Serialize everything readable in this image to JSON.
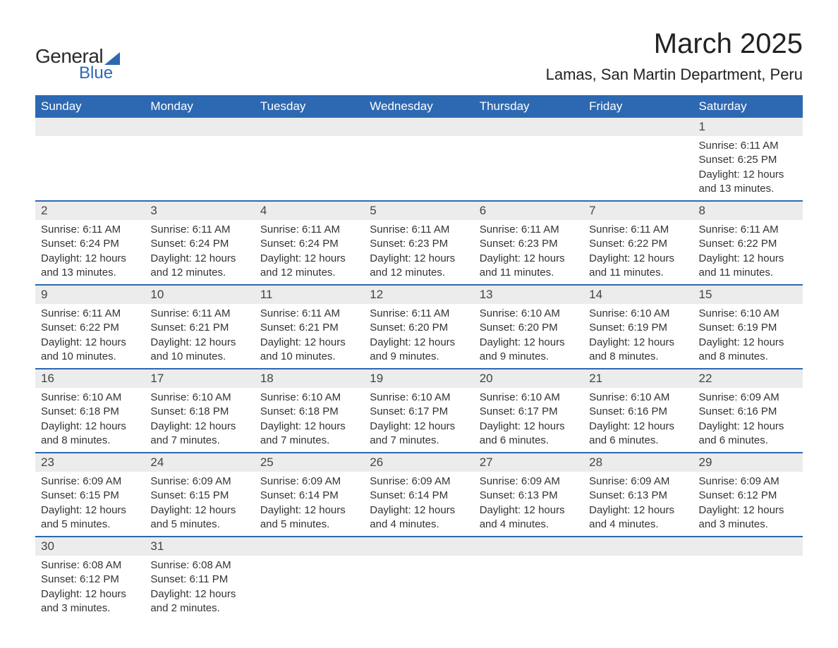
{
  "brand": {
    "line1": "General",
    "line2": "Blue"
  },
  "title": "March 2025",
  "location": "Lamas, San Martin Department, Peru",
  "colors": {
    "header_bg": "#2d68b2",
    "header_text": "#ffffff",
    "daynum_bg": "#ececec",
    "row_divider": "#2d68b2",
    "body_text": "#333333",
    "page_bg": "#ffffff"
  },
  "typography": {
    "title_fontsize": 40,
    "location_fontsize": 22,
    "header_fontsize": 17,
    "daynum_fontsize": 17,
    "body_fontsize": 15,
    "font_family": "Arial"
  },
  "weekday_headers": [
    "Sunday",
    "Monday",
    "Tuesday",
    "Wednesday",
    "Thursday",
    "Friday",
    "Saturday"
  ],
  "weeks": [
    [
      null,
      null,
      null,
      null,
      null,
      null,
      {
        "n": "1",
        "sunrise": "Sunrise: 6:11 AM",
        "sunset": "Sunset: 6:25 PM",
        "daylight": "Daylight: 12 hours and 13 minutes."
      }
    ],
    [
      {
        "n": "2",
        "sunrise": "Sunrise: 6:11 AM",
        "sunset": "Sunset: 6:24 PM",
        "daylight": "Daylight: 12 hours and 13 minutes."
      },
      {
        "n": "3",
        "sunrise": "Sunrise: 6:11 AM",
        "sunset": "Sunset: 6:24 PM",
        "daylight": "Daylight: 12 hours and 12 minutes."
      },
      {
        "n": "4",
        "sunrise": "Sunrise: 6:11 AM",
        "sunset": "Sunset: 6:24 PM",
        "daylight": "Daylight: 12 hours and 12 minutes."
      },
      {
        "n": "5",
        "sunrise": "Sunrise: 6:11 AM",
        "sunset": "Sunset: 6:23 PM",
        "daylight": "Daylight: 12 hours and 12 minutes."
      },
      {
        "n": "6",
        "sunrise": "Sunrise: 6:11 AM",
        "sunset": "Sunset: 6:23 PM",
        "daylight": "Daylight: 12 hours and 11 minutes."
      },
      {
        "n": "7",
        "sunrise": "Sunrise: 6:11 AM",
        "sunset": "Sunset: 6:22 PM",
        "daylight": "Daylight: 12 hours and 11 minutes."
      },
      {
        "n": "8",
        "sunrise": "Sunrise: 6:11 AM",
        "sunset": "Sunset: 6:22 PM",
        "daylight": "Daylight: 12 hours and 11 minutes."
      }
    ],
    [
      {
        "n": "9",
        "sunrise": "Sunrise: 6:11 AM",
        "sunset": "Sunset: 6:22 PM",
        "daylight": "Daylight: 12 hours and 10 minutes."
      },
      {
        "n": "10",
        "sunrise": "Sunrise: 6:11 AM",
        "sunset": "Sunset: 6:21 PM",
        "daylight": "Daylight: 12 hours and 10 minutes."
      },
      {
        "n": "11",
        "sunrise": "Sunrise: 6:11 AM",
        "sunset": "Sunset: 6:21 PM",
        "daylight": "Daylight: 12 hours and 10 minutes."
      },
      {
        "n": "12",
        "sunrise": "Sunrise: 6:11 AM",
        "sunset": "Sunset: 6:20 PM",
        "daylight": "Daylight: 12 hours and 9 minutes."
      },
      {
        "n": "13",
        "sunrise": "Sunrise: 6:10 AM",
        "sunset": "Sunset: 6:20 PM",
        "daylight": "Daylight: 12 hours and 9 minutes."
      },
      {
        "n": "14",
        "sunrise": "Sunrise: 6:10 AM",
        "sunset": "Sunset: 6:19 PM",
        "daylight": "Daylight: 12 hours and 8 minutes."
      },
      {
        "n": "15",
        "sunrise": "Sunrise: 6:10 AM",
        "sunset": "Sunset: 6:19 PM",
        "daylight": "Daylight: 12 hours and 8 minutes."
      }
    ],
    [
      {
        "n": "16",
        "sunrise": "Sunrise: 6:10 AM",
        "sunset": "Sunset: 6:18 PM",
        "daylight": "Daylight: 12 hours and 8 minutes."
      },
      {
        "n": "17",
        "sunrise": "Sunrise: 6:10 AM",
        "sunset": "Sunset: 6:18 PM",
        "daylight": "Daylight: 12 hours and 7 minutes."
      },
      {
        "n": "18",
        "sunrise": "Sunrise: 6:10 AM",
        "sunset": "Sunset: 6:18 PM",
        "daylight": "Daylight: 12 hours and 7 minutes."
      },
      {
        "n": "19",
        "sunrise": "Sunrise: 6:10 AM",
        "sunset": "Sunset: 6:17 PM",
        "daylight": "Daylight: 12 hours and 7 minutes."
      },
      {
        "n": "20",
        "sunrise": "Sunrise: 6:10 AM",
        "sunset": "Sunset: 6:17 PM",
        "daylight": "Daylight: 12 hours and 6 minutes."
      },
      {
        "n": "21",
        "sunrise": "Sunrise: 6:10 AM",
        "sunset": "Sunset: 6:16 PM",
        "daylight": "Daylight: 12 hours and 6 minutes."
      },
      {
        "n": "22",
        "sunrise": "Sunrise: 6:09 AM",
        "sunset": "Sunset: 6:16 PM",
        "daylight": "Daylight: 12 hours and 6 minutes."
      }
    ],
    [
      {
        "n": "23",
        "sunrise": "Sunrise: 6:09 AM",
        "sunset": "Sunset: 6:15 PM",
        "daylight": "Daylight: 12 hours and 5 minutes."
      },
      {
        "n": "24",
        "sunrise": "Sunrise: 6:09 AM",
        "sunset": "Sunset: 6:15 PM",
        "daylight": "Daylight: 12 hours and 5 minutes."
      },
      {
        "n": "25",
        "sunrise": "Sunrise: 6:09 AM",
        "sunset": "Sunset: 6:14 PM",
        "daylight": "Daylight: 12 hours and 5 minutes."
      },
      {
        "n": "26",
        "sunrise": "Sunrise: 6:09 AM",
        "sunset": "Sunset: 6:14 PM",
        "daylight": "Daylight: 12 hours and 4 minutes."
      },
      {
        "n": "27",
        "sunrise": "Sunrise: 6:09 AM",
        "sunset": "Sunset: 6:13 PM",
        "daylight": "Daylight: 12 hours and 4 minutes."
      },
      {
        "n": "28",
        "sunrise": "Sunrise: 6:09 AM",
        "sunset": "Sunset: 6:13 PM",
        "daylight": "Daylight: 12 hours and 4 minutes."
      },
      {
        "n": "29",
        "sunrise": "Sunrise: 6:09 AM",
        "sunset": "Sunset: 6:12 PM",
        "daylight": "Daylight: 12 hours and 3 minutes."
      }
    ],
    [
      {
        "n": "30",
        "sunrise": "Sunrise: 6:08 AM",
        "sunset": "Sunset: 6:12 PM",
        "daylight": "Daylight: 12 hours and 3 minutes."
      },
      {
        "n": "31",
        "sunrise": "Sunrise: 6:08 AM",
        "sunset": "Sunset: 6:11 PM",
        "daylight": "Daylight: 12 hours and 2 minutes."
      },
      null,
      null,
      null,
      null,
      null
    ]
  ]
}
